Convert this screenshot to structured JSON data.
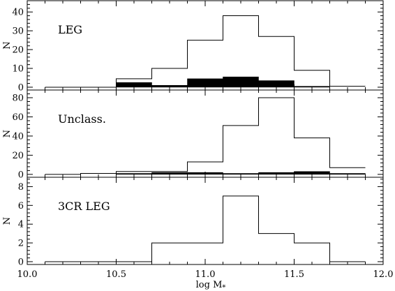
{
  "chart_data": {
    "type": "bar",
    "xlabel": "log M",
    "xlabel_subscript": "*",
    "xlim": [
      10.0,
      12.0
    ],
    "x_ticks": [
      "10.0",
      "10.5",
      "11.0",
      "11.5",
      "12.0"
    ],
    "bin_edges": [
      10.1,
      10.3,
      10.5,
      10.7,
      10.9,
      11.1,
      11.3,
      11.5,
      11.7,
      11.9
    ],
    "panels": [
      {
        "label": "LEG",
        "ylabel": "N",
        "ylim": [
          -1.5,
          46
        ],
        "y_ticks": [
          "0",
          "10",
          "20",
          "30",
          "40"
        ],
        "series": [
          {
            "style": "outline",
            "values": [
              0,
              0,
              4.5,
              10,
              25,
              38,
              27,
              9,
              0.5
            ]
          },
          {
            "style": "filled",
            "values": [
              0,
              0,
              2.5,
              1,
              4.5,
              5.5,
              3.5,
              0.5,
              0
            ]
          }
        ]
      },
      {
        "label": "Unclass.",
        "ylabel": "N",
        "ylim": [
          -3,
          88
        ],
        "y_ticks": [
          "0",
          "20",
          "40",
          "60",
          "80"
        ],
        "series": [
          {
            "style": "outline",
            "values": [
              0,
              1,
              3,
              3,
              13,
              51,
              80,
              38,
              7
            ]
          },
          {
            "style": "filled",
            "values": [
              0,
              0,
              1,
              2,
              2,
              1,
              2,
              3,
              1
            ]
          }
        ]
      },
      {
        "label": "3CR LEG",
        "ylabel": "N",
        "ylim": [
          -0.3,
          9
        ],
        "y_ticks": [
          "0",
          "2",
          "4",
          "6",
          "8"
        ],
        "series": [
          {
            "style": "outline",
            "values": [
              0,
              0,
              0,
              2,
              2,
              7,
              3,
              2,
              0
            ]
          }
        ]
      }
    ]
  }
}
